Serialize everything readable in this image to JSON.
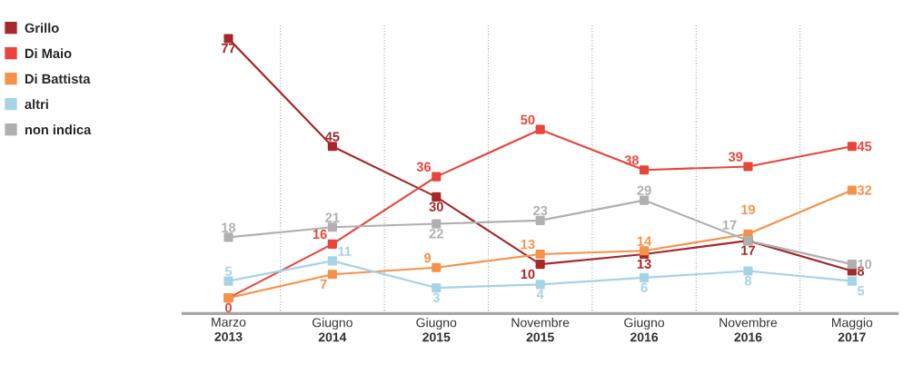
{
  "chart_data": {
    "type": "line",
    "categories": [
      "Marzo **2013**",
      "Giugno **2014**",
      "Giugno **2015**",
      "Novembre **2015**",
      "Giugno **2016**",
      "Novembre **2016**",
      "Maggio **2017**"
    ],
    "series": [
      {
        "name": "Grillo",
        "color": "#a6282a",
        "values": [
          77,
          45,
          30,
          10,
          13,
          17,
          8
        ]
      },
      {
        "name": "Di Maio",
        "color": "#e8453c",
        "values": [
          0,
          16,
          36,
          50,
          38,
          39,
          45
        ]
      },
      {
        "name": "Di Battista",
        "color": "#f4924a",
        "values": [
          0,
          7,
          9,
          13,
          14,
          19,
          32
        ],
        "value_labels": [
          null,
          "7",
          "9",
          "13",
          "14",
          "19",
          "32"
        ]
      },
      {
        "name": "altri",
        "color": "#a6d3e6",
        "values": [
          5,
          11,
          3,
          4,
          6,
          8,
          5
        ]
      },
      {
        "name": "non indica",
        "color": "#b0b0b0",
        "values": [
          18,
          21,
          22,
          23,
          29,
          17,
          10
        ]
      }
    ],
    "data_labels": true,
    "marker": "square",
    "grid": "x",
    "legend": "left"
  }
}
